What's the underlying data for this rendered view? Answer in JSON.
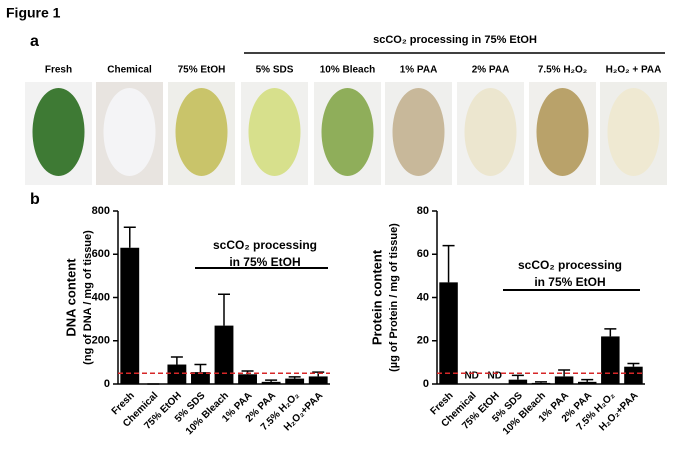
{
  "figure_title": "Figure 1",
  "panel_a": {
    "label": "a",
    "group_header": "scCO₂ processing in 75% EtOH",
    "photos": [
      "Fresh",
      "Chemical",
      "75% EtOH",
      "5% SDS",
      "10% Bleach",
      "1% PAA",
      "2% PAA",
      "7.5% H₂O₂",
      "H₂O₂ + PAA"
    ]
  },
  "panel_b": {
    "label": "b"
  },
  "chart_data": [
    {
      "type": "bar",
      "y_label": [
        "DNA content",
        "(ng of DNA / mg of tissue)"
      ],
      "categories": [
        "Fresh",
        "Chemical",
        "75% EtOH",
        "5% SDS",
        "10% Bleach",
        "1% PAA",
        "2% PAA",
        "7.5% H₂O₂",
        "H₂O₂+PAA"
      ],
      "values": [
        630,
        0,
        90,
        55,
        270,
        45,
        10,
        25,
        35
      ],
      "errors": [
        95,
        0,
        35,
        35,
        145,
        15,
        8,
        8,
        20
      ],
      "color": "#000000",
      "ylim": [
        0,
        800
      ],
      "yticks": [
        0,
        200,
        400,
        600,
        800
      ],
      "ref_line": 50,
      "ref_color": "#d62728",
      "annotation": [
        "scCO₂ processing",
        "in 75% EtOH"
      ]
    },
    {
      "type": "bar",
      "y_label": [
        "Protein content",
        "(µg of Protein / mg of tissue)"
      ],
      "categories": [
        "Fresh",
        "Chemical",
        "75% EtOH",
        "5% SDS",
        "10% Bleach",
        "1% PAA",
        "2% PAA",
        "7.5% H₂O₂",
        "H₂O₂+PAA"
      ],
      "values": [
        47,
        null,
        null,
        2,
        0.5,
        3.5,
        1,
        22,
        8
      ],
      "value_labels": [
        null,
        "ND",
        "ND",
        null,
        null,
        null,
        null,
        null,
        null
      ],
      "errors": [
        17,
        null,
        null,
        2,
        0.5,
        3,
        1,
        3.5,
        1.5
      ],
      "color": "#000000",
      "ylim": [
        0,
        80
      ],
      "yticks": [
        0,
        20,
        40,
        60,
        80
      ],
      "ref_line": 5,
      "ref_color": "#d62728",
      "annotation": [
        "scCO₂ processing",
        "in 75% EtOH"
      ]
    }
  ]
}
